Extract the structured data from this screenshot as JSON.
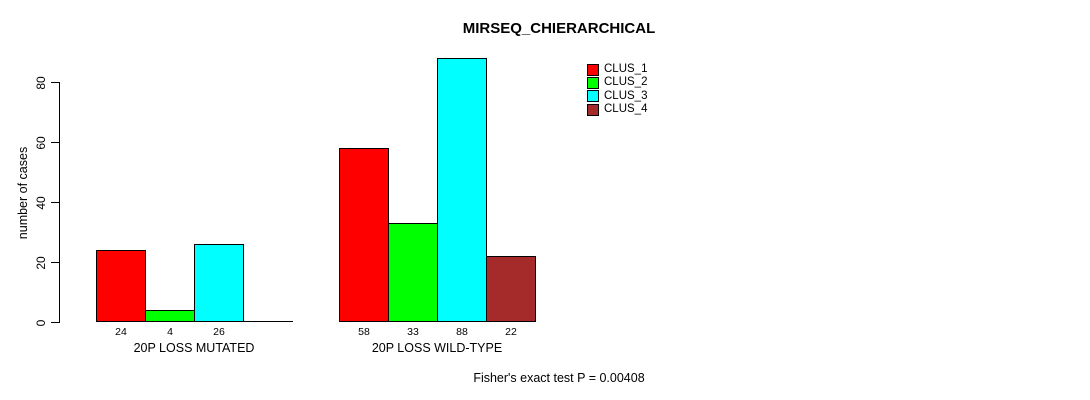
{
  "chart_data": {
    "type": "bar",
    "title": "MIRSEQ_CHIERARCHICAL",
    "xlabel": "",
    "ylabel": "number of cases",
    "ylim": [
      0,
      88
    ],
    "yticks": [
      0,
      20,
      40,
      60,
      80
    ],
    "grid": false,
    "legend_position": "top-right",
    "categories": [
      "20P LOSS MUTATED",
      "20P LOSS WILD-TYPE"
    ],
    "series": [
      {
        "name": "CLUS_1",
        "color": "#FF0000",
        "values": [
          24,
          58
        ]
      },
      {
        "name": "CLUS_2",
        "color": "#00FF00",
        "values": [
          4,
          33
        ]
      },
      {
        "name": "CLUS_3",
        "color": "#00FFFF",
        "values": [
          26,
          88
        ]
      },
      {
        "name": "CLUS_4",
        "color": "#A52A2A",
        "values": [
          0,
          22
        ]
      }
    ],
    "bar_value_labels": [
      [
        "24",
        "4",
        "26",
        ""
      ],
      [
        "58",
        "33",
        "88",
        "22"
      ]
    ],
    "annotation": "Fisher's exact test P = 0.00408"
  }
}
